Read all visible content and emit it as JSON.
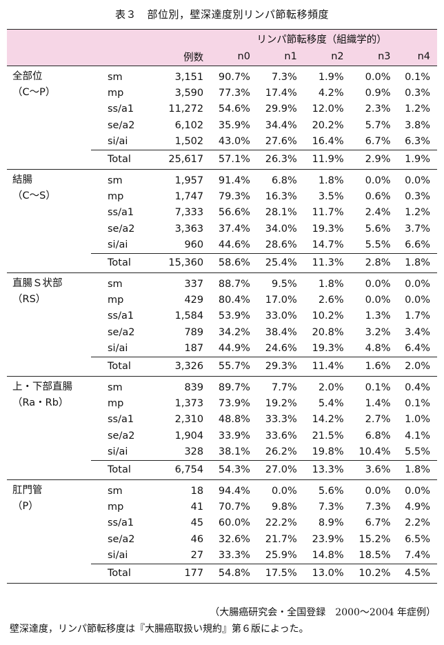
{
  "title": "表３　部位別，壁深達度別リンパ節転移頻度",
  "header": {
    "group_label": "リンパ節転移度（組織学的）",
    "cases_label": "例数",
    "cols": [
      "n0",
      "n1",
      "n2",
      "n3",
      "n4"
    ]
  },
  "groups": [
    {
      "name_line1": "全部位",
      "name_line2": "（C〜P）",
      "rows": [
        {
          "depth": "sm",
          "n": "3,151",
          "v": [
            "90.7%",
            "7.3%",
            "1.9%",
            "0.0%",
            "0.1%"
          ]
        },
        {
          "depth": "mp",
          "n": "3,590",
          "v": [
            "77.3%",
            "17.4%",
            "4.2%",
            "0.9%",
            "0.3%"
          ]
        },
        {
          "depth": "ss/a1",
          "n": "11,272",
          "v": [
            "54.6%",
            "29.9%",
            "12.0%",
            "2.3%",
            "1.2%"
          ]
        },
        {
          "depth": "se/a2",
          "n": "6,102",
          "v": [
            "35.9%",
            "34.4%",
            "20.2%",
            "5.7%",
            "3.8%"
          ]
        },
        {
          "depth": "si/ai",
          "n": "1,502",
          "v": [
            "43.0%",
            "27.6%",
            "16.4%",
            "6.7%",
            "6.3%"
          ]
        }
      ],
      "total": {
        "depth": "Total",
        "n": "25,617",
        "v": [
          "57.1%",
          "26.3%",
          "11.9%",
          "2.9%",
          "1.9%"
        ]
      }
    },
    {
      "name_line1": "結腸",
      "name_line2": "（C〜S）",
      "rows": [
        {
          "depth": "sm",
          "n": "1,957",
          "v": [
            "91.4%",
            "6.8%",
            "1.8%",
            "0.0%",
            "0.0%"
          ]
        },
        {
          "depth": "mp",
          "n": "1,747",
          "v": [
            "79.3%",
            "16.3%",
            "3.5%",
            "0.6%",
            "0.3%"
          ]
        },
        {
          "depth": "ss/a1",
          "n": "7,333",
          "v": [
            "56.6%",
            "28.1%",
            "11.7%",
            "2.4%",
            "1.2%"
          ]
        },
        {
          "depth": "se/a2",
          "n": "3,363",
          "v": [
            "37.4%",
            "34.0%",
            "19.3%",
            "5.6%",
            "3.7%"
          ]
        },
        {
          "depth": "si/ai",
          "n": "960",
          "v": [
            "44.6%",
            "28.6%",
            "14.7%",
            "5.5%",
            "6.6%"
          ]
        }
      ],
      "total": {
        "depth": "Total",
        "n": "15,360",
        "v": [
          "58.6%",
          "25.4%",
          "11.3%",
          "2.8%",
          "1.8%"
        ]
      }
    },
    {
      "name_line1": "直腸Ｓ状部",
      "name_line2": "（RS）",
      "rows": [
        {
          "depth": "sm",
          "n": "337",
          "v": [
            "88.7%",
            "9.5%",
            "1.8%",
            "0.0%",
            "0.0%"
          ]
        },
        {
          "depth": "mp",
          "n": "429",
          "v": [
            "80.4%",
            "17.0%",
            "2.6%",
            "0.0%",
            "0.0%"
          ]
        },
        {
          "depth": "ss/a1",
          "n": "1,584",
          "v": [
            "53.9%",
            "33.0%",
            "10.2%",
            "1.3%",
            "1.7%"
          ]
        },
        {
          "depth": "se/a2",
          "n": "789",
          "v": [
            "34.2%",
            "38.4%",
            "20.8%",
            "3.2%",
            "3.4%"
          ]
        },
        {
          "depth": "si/ai",
          "n": "187",
          "v": [
            "44.9%",
            "24.6%",
            "19.3%",
            "4.8%",
            "6.4%"
          ]
        }
      ],
      "total": {
        "depth": "Total",
        "n": "3,326",
        "v": [
          "55.7%",
          "29.3%",
          "11.4%",
          "1.6%",
          "2.0%"
        ]
      }
    },
    {
      "name_line1": "上・下部直腸",
      "name_line2": "（Ra・Rb）",
      "rows": [
        {
          "depth": "sm",
          "n": "839",
          "v": [
            "89.7%",
            "7.7%",
            "2.0%",
            "0.1%",
            "0.4%"
          ]
        },
        {
          "depth": "mp",
          "n": "1,373",
          "v": [
            "73.9%",
            "19.2%",
            "5.4%",
            "1.4%",
            "0.1%"
          ]
        },
        {
          "depth": "ss/a1",
          "n": "2,310",
          "v": [
            "48.8%",
            "33.3%",
            "14.2%",
            "2.7%",
            "1.0%"
          ]
        },
        {
          "depth": "se/a2",
          "n": "1,904",
          "v": [
            "33.9%",
            "33.6%",
            "21.5%",
            "6.8%",
            "4.1%"
          ]
        },
        {
          "depth": "si/ai",
          "n": "328",
          "v": [
            "38.1%",
            "26.2%",
            "19.8%",
            "10.4%",
            "5.5%"
          ]
        }
      ],
      "total": {
        "depth": "Total",
        "n": "6,754",
        "v": [
          "54.3%",
          "27.0%",
          "13.3%",
          "3.6%",
          "1.8%"
        ]
      }
    },
    {
      "name_line1": "肛門管",
      "name_line2": "（P）",
      "rows": [
        {
          "depth": "sm",
          "n": "18",
          "v": [
            "94.4%",
            "0.0%",
            "5.6%",
            "0.0%",
            "0.0%"
          ]
        },
        {
          "depth": "mp",
          "n": "41",
          "v": [
            "70.7%",
            "9.8%",
            "7.3%",
            "7.3%",
            "4.9%"
          ]
        },
        {
          "depth": "ss/a1",
          "n": "45",
          "v": [
            "60.0%",
            "22.2%",
            "8.9%",
            "6.7%",
            "2.2%"
          ]
        },
        {
          "depth": "se/a2",
          "n": "46",
          "v": [
            "32.6%",
            "21.7%",
            "23.9%",
            "15.2%",
            "6.5%"
          ]
        },
        {
          "depth": "si/ai",
          "n": "27",
          "v": [
            "33.3%",
            "25.9%",
            "14.8%",
            "18.5%",
            "7.4%"
          ]
        }
      ],
      "total": {
        "depth": "Total",
        "n": "177",
        "v": [
          "54.8%",
          "17.5%",
          "13.0%",
          "10.2%",
          "4.5%"
        ]
      }
    }
  ],
  "source": "（大腸癌研究会・全国登録　2000〜2004 年症例）",
  "note": "壁深達度，リンパ節転移度は『大腸癌取扱い規約』第６版によった。"
}
